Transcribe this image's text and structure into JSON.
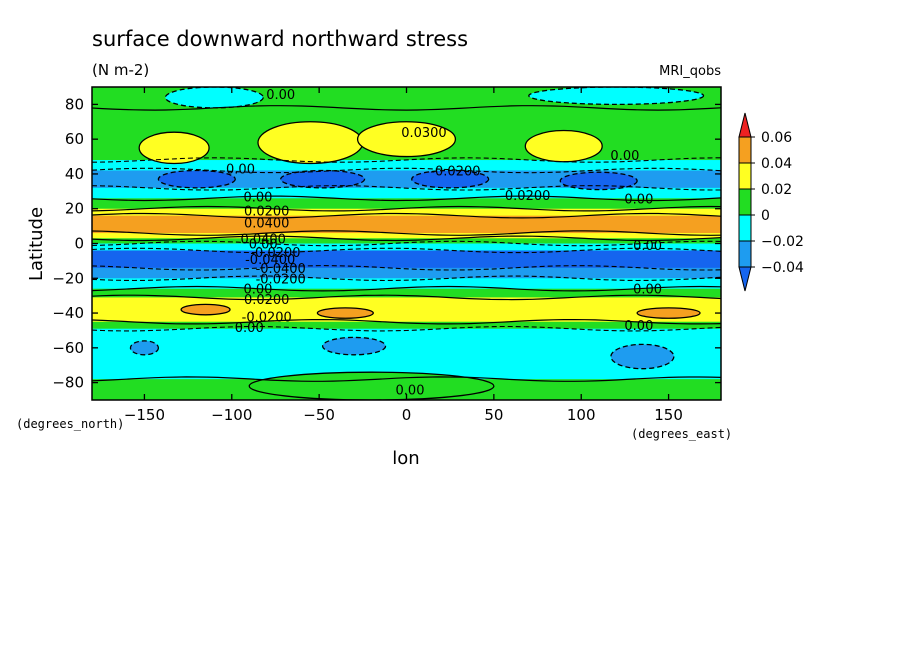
{
  "chart_data": {
    "type": "heatmap",
    "title": "surface downward northward stress",
    "units": "(N m-2)",
    "model": "MRI_qobs",
    "xlabel": "lon",
    "ylabel": "Latitude",
    "x_unit": "(degrees_east)",
    "y_unit": "(degrees_north)",
    "xlim": [
      -180,
      180
    ],
    "ylim": [
      -90,
      90
    ],
    "x_ticks": [
      -150,
      -100,
      -50,
      0,
      50,
      100,
      150
    ],
    "y_ticks": [
      -80,
      -60,
      -40,
      -20,
      0,
      20,
      40,
      60,
      80
    ],
    "x_tick_labels": [
      "−150",
      "−100",
      "−50",
      "0",
      "50",
      "100",
      "150"
    ],
    "y_tick_labels": [
      "−80",
      "−60",
      "−40",
      "−20",
      "0",
      "20",
      "40",
      "60",
      "80"
    ],
    "levels": [
      -0.04,
      -0.02,
      0,
      0.02,
      0.04,
      0.06
    ],
    "colorbar_labels": [
      "0.06",
      "0.04",
      "0.02",
      "0",
      "−0.02",
      "−0.04"
    ],
    "colors": {
      "below_neg004": "#1565ef",
      "neg004_neg002": "#1e9cf0",
      "neg002_0": "#00ffff",
      "zero_002": "#22dd22",
      "p002_p004": "#ffff22",
      "p004_p006": "#f5a020",
      "above_p006": "#ee2222"
    },
    "zonal_bands": [
      {
        "lat_from": 90,
        "lat_to": 78,
        "class": "zero_002"
      },
      {
        "lat_from": 78,
        "lat_to": 48,
        "class": "zero_002"
      },
      {
        "lat_from": 48,
        "lat_to": 42,
        "class": "neg002_0"
      },
      {
        "lat_from": 42,
        "lat_to": 32,
        "class": "neg004_neg002"
      },
      {
        "lat_from": 32,
        "lat_to": 26,
        "class": "neg002_0"
      },
      {
        "lat_from": 26,
        "lat_to": 20,
        "class": "zero_002"
      },
      {
        "lat_from": 20,
        "lat_to": 16,
        "class": "p002_p004"
      },
      {
        "lat_from": 16,
        "lat_to": 6,
        "class": "p004_p006"
      },
      {
        "lat_from": 6,
        "lat_to": 3,
        "class": "p002_p004"
      },
      {
        "lat_from": 3,
        "lat_to": 0,
        "class": "zero_002"
      },
      {
        "lat_from": 0,
        "lat_to": -4,
        "class": "neg002_0"
      },
      {
        "lat_from": -4,
        "lat_to": -14,
        "class": "below_neg004"
      },
      {
        "lat_from": -14,
        "lat_to": -20,
        "class": "neg004_neg002"
      },
      {
        "lat_from": -20,
        "lat_to": -26,
        "class": "neg002_0"
      },
      {
        "lat_from": -26,
        "lat_to": -31,
        "class": "zero_002"
      },
      {
        "lat_from": -31,
        "lat_to": -45,
        "class": "p002_p004"
      },
      {
        "lat_from": -45,
        "lat_to": -49,
        "class": "zero_002"
      },
      {
        "lat_from": -49,
        "lat_to": -78,
        "class": "neg002_0"
      },
      {
        "lat_from": -78,
        "lat_to": -90,
        "class": "zero_002"
      }
    ],
    "blobs": [
      {
        "lon": -133,
        "lat": 55,
        "rlon": 20,
        "rlat": 9,
        "class": "p002_p004"
      },
      {
        "lon": -55,
        "lat": 58,
        "rlon": 30,
        "rlat": 12,
        "class": "p002_p004"
      },
      {
        "lon": 0,
        "lat": 60,
        "rlon": 28,
        "rlat": 10,
        "class": "p002_p004"
      },
      {
        "lon": 90,
        "lat": 56,
        "rlon": 22,
        "rlat": 9,
        "class": "p002_p004"
      },
      {
        "lon": -120,
        "lat": 37,
        "rlon": 22,
        "rlat": 5,
        "class": "below_neg004"
      },
      {
        "lon": -48,
        "lat": 37,
        "rlon": 24,
        "rlat": 5,
        "class": "below_neg004"
      },
      {
        "lon": 25,
        "lat": 37,
        "rlon": 22,
        "rlat": 5,
        "class": "below_neg004"
      },
      {
        "lon": 110,
        "lat": 36,
        "rlon": 22,
        "rlat": 5,
        "class": "below_neg004"
      },
      {
        "lon": 135,
        "lat": -65,
        "rlon": 18,
        "rlat": 7,
        "class": "neg004_neg002"
      },
      {
        "lon": -30,
        "lat": -59,
        "rlon": 18,
        "rlat": 5,
        "class": "neg004_neg002"
      },
      {
        "lon": -150,
        "lat": -60,
        "rlon": 8,
        "rlat": 4,
        "class": "neg004_neg002"
      },
      {
        "lon": -115,
        "lat": -38,
        "rlon": 14,
        "rlat": 3,
        "class": "p004_p006"
      },
      {
        "lon": -35,
        "lat": -40,
        "rlon": 16,
        "rlat": 3,
        "class": "p004_p006"
      },
      {
        "lon": 150,
        "lat": -40,
        "rlon": 18,
        "rlat": 3,
        "class": "p004_p006"
      },
      {
        "lon": -20,
        "lat": -82,
        "rlon": 70,
        "rlat": 8,
        "class": "zero_002"
      },
      {
        "lon": -110,
        "lat": 84,
        "rlon": 28,
        "rlat": 6,
        "class": "neg002_0"
      },
      {
        "lon": 120,
        "lat": 85,
        "rlon": 50,
        "rlat": 5,
        "class": "neg002_0"
      }
    ],
    "contour_labels": [
      {
        "text": "0.00",
        "lon": -72,
        "lat": 86
      },
      {
        "text": "0.0300",
        "lon": 10,
        "lat": 64
      },
      {
        "text": "0.00",
        "lon": -95,
        "lat": 43
      },
      {
        "text": "0.00",
        "lon": 125,
        "lat": 51
      },
      {
        "text": "-0.0200",
        "lon": 28,
        "lat": 42
      },
      {
        "text": "-0.0200",
        "lon": 68,
        "lat": 28
      },
      {
        "text": "0.00",
        "lon": -85,
        "lat": 27
      },
      {
        "text": "0.00",
        "lon": 133,
        "lat": 26
      },
      {
        "text": "0.0200",
        "lon": -80,
        "lat": 19
      },
      {
        "text": "0.0400",
        "lon": -80,
        "lat": 12
      },
      {
        "text": "0.0400",
        "lon": -82,
        "lat": 3
      },
      {
        "text": "0.00",
        "lon": -82,
        "lat": 0
      },
      {
        "text": "0.00",
        "lon": 138,
        "lat": -1
      },
      {
        "text": "-0.0200",
        "lon": -75,
        "lat": -5
      },
      {
        "text": "-0.0400",
        "lon": -78,
        "lat": -9
      },
      {
        "text": "-0.0400",
        "lon": -72,
        "lat": -14
      },
      {
        "text": "-0.0200",
        "lon": -72,
        "lat": -20
      },
      {
        "text": "0.00",
        "lon": -85,
        "lat": -26
      },
      {
        "text": "0.00",
        "lon": 138,
        "lat": -26
      },
      {
        "text": "0.0200",
        "lon": -80,
        "lat": -32
      },
      {
        "text": "-0.0200",
        "lon": -80,
        "lat": -42
      },
      {
        "text": "0.00",
        "lon": -90,
        "lat": -48
      },
      {
        "text": "0.00",
        "lon": 133,
        "lat": -47
      },
      {
        "text": "0.00",
        "lon": 2,
        "lat": -84
      }
    ]
  }
}
